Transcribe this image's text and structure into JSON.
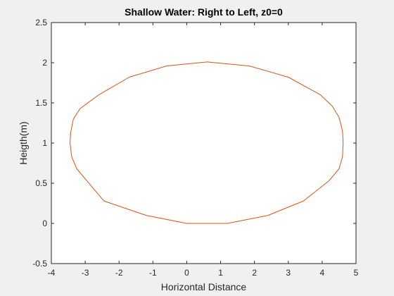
{
  "chart_data": {
    "type": "line",
    "title": "Shallow Water: Right to Left, z0=0",
    "xlabel": "Horizontal Distance",
    "ylabel": "Heigth(m)",
    "xlim": [
      -4,
      5
    ],
    "ylim": [
      -0.5,
      2.5
    ],
    "xticks": [
      "-4",
      "-3",
      "-2",
      "-1",
      "0",
      "1",
      "2",
      "3",
      "4",
      "5"
    ],
    "yticks": [
      "-0.5",
      "0",
      "0.5",
      "1",
      "1.5",
      "2",
      "2.5"
    ],
    "grid": false,
    "legend": "none",
    "series": [
      {
        "color": "#d95319",
        "x": [
          0,
          1.2,
          2.4,
          3.45,
          4.2,
          4.5,
          4.6,
          4.62,
          4.6,
          4.5,
          4.3,
          3.95,
          3.0,
          1.85,
          0.6,
          -0.6,
          -1.7,
          -2.6,
          -3.15,
          -3.35,
          -3.43,
          -3.45,
          -3.4,
          -3.25,
          -2.95,
          -2.45,
          -1.2,
          0
        ],
        "y": [
          0,
          0,
          0.1,
          0.28,
          0.53,
          0.68,
          0.83,
          1.0,
          1.15,
          1.32,
          1.46,
          1.6,
          1.82,
          1.96,
          2.01,
          1.96,
          1.82,
          1.6,
          1.43,
          1.3,
          1.13,
          1.0,
          0.83,
          0.68,
          0.53,
          0.28,
          0.1,
          0
        ]
      }
    ]
  },
  "colors": {
    "background": "#f0f0f0",
    "axes_background": "#ffffff",
    "axes_color": "#262626",
    "line": "#d95319"
  }
}
